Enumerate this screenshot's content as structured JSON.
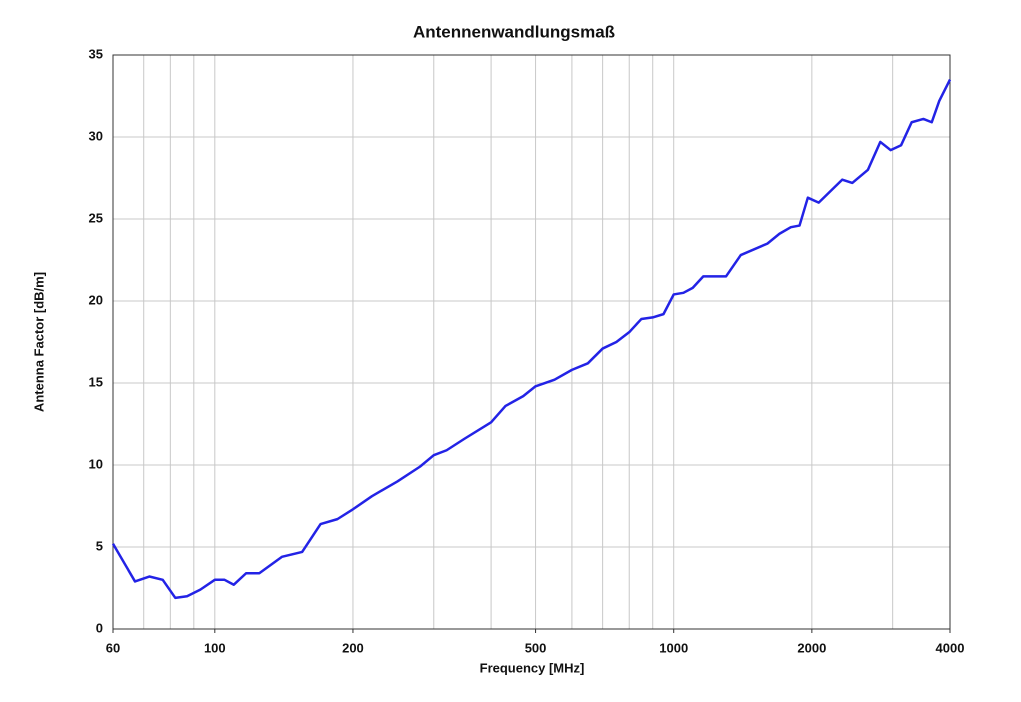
{
  "chart_data": {
    "type": "line",
    "title": "Antennenwandlungsmaß",
    "x_label": "Frequency [MHz]",
    "y_label": "Antenna Factor [dB/m]",
    "x_scale": "log",
    "grid": true,
    "xlim": [
      60,
      4000
    ],
    "ylim": [
      0,
      35
    ],
    "xticks": [
      60,
      100,
      200,
      500,
      1000,
      2000,
      4000
    ],
    "xgrid": [
      70,
      80,
      90,
      100,
      200,
      300,
      400,
      500,
      600,
      700,
      800,
      900,
      1000,
      2000,
      3000
    ],
    "yticks": [
      0,
      5,
      10,
      15,
      20,
      25,
      30,
      35
    ],
    "x": [
      60,
      67,
      72,
      77,
      82,
      87,
      93,
      100,
      105,
      110,
      117,
      125,
      140,
      155,
      170,
      185,
      200,
      220,
      250,
      280,
      300,
      320,
      350,
      400,
      430,
      470,
      500,
      550,
      600,
      650,
      700,
      750,
      800,
      850,
      900,
      950,
      1000,
      1050,
      1100,
      1160,
      1250,
      1300,
      1400,
      1600,
      1700,
      1800,
      1880,
      1960,
      2070,
      2330,
      2450,
      2650,
      2820,
      2970,
      3130,
      3300,
      3500,
      3650,
      3790,
      4000
    ],
    "series": [
      {
        "name": "Antenna Factor",
        "color": "#2323e6",
        "values": [
          5.2,
          2.9,
          3.2,
          3.0,
          1.9,
          2.0,
          2.4,
          3.0,
          3.0,
          2.7,
          3.4,
          3.4,
          4.4,
          4.7,
          6.4,
          6.7,
          7.3,
          8.1,
          9.0,
          9.9,
          10.6,
          10.9,
          11.6,
          12.6,
          13.6,
          14.2,
          14.8,
          15.2,
          15.8,
          16.2,
          17.1,
          17.5,
          18.1,
          18.9,
          19.0,
          19.2,
          20.4,
          20.5,
          20.8,
          21.5,
          21.5,
          21.5,
          22.8,
          23.5,
          24.1,
          24.5,
          24.6,
          26.3,
          26.0,
          27.4,
          27.2,
          28.0,
          29.7,
          29.2,
          29.5,
          30.9,
          31.1,
          30.9,
          32.2,
          33.5
        ]
      }
    ]
  }
}
